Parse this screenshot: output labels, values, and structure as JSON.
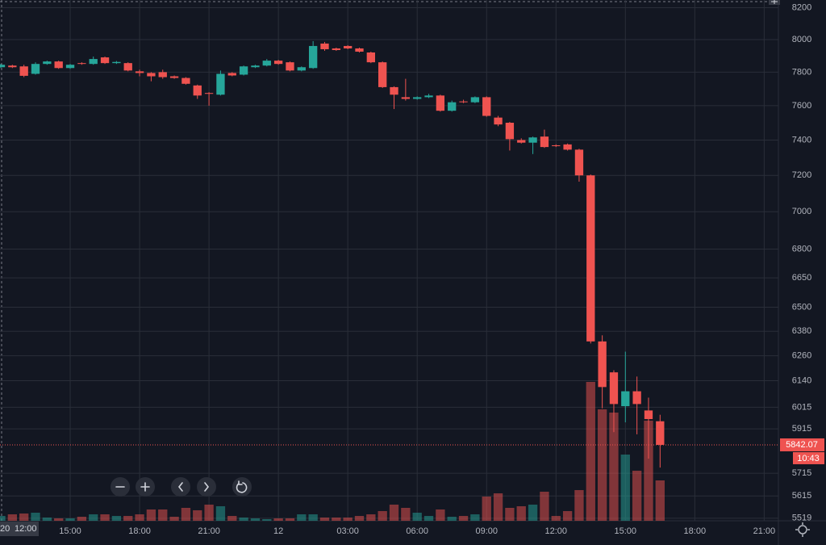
{
  "chart_data": {
    "type": "candlestick",
    "categories": [
      "12:00",
      "12:30",
      "13:00",
      "13:30",
      "14:00",
      "14:30",
      "15:00",
      "15:30",
      "16:00",
      "16:30",
      "17:00",
      "17:30",
      "18:00",
      "18:30",
      "19:00",
      "19:30",
      "20:00",
      "20:30",
      "21:00",
      "21:30",
      "22:00",
      "22:30",
      "23:00",
      "23:30",
      "00:00",
      "00:30",
      "01:00",
      "01:30",
      "02:00",
      "02:30",
      "03:00",
      "03:30",
      "04:00",
      "04:30",
      "05:00",
      "05:30",
      "06:00",
      "06:30",
      "07:00",
      "07:30",
      "08:00",
      "08:30",
      "09:00",
      "09:30",
      "10:00",
      "10:30",
      "11:00",
      "11:30",
      "12:00",
      "12:30",
      "13:00",
      "13:30",
      "14:00",
      "14:30",
      "15:00",
      "15:30",
      "16:00",
      "16:30"
    ],
    "open": [
      7830,
      7840,
      7835,
      7790,
      7850,
      7865,
      7825,
      7855,
      7850,
      7890,
      7855,
      7855,
      7805,
      7795,
      7800,
      7775,
      7765,
      7720,
      7675,
      7665,
      7795,
      7785,
      7830,
      7840,
      7870,
      7860,
      7810,
      7825,
      7975,
      7945,
      7960,
      7945,
      7920,
      7860,
      7710,
      7650,
      7640,
      7650,
      7660,
      7570,
      7625,
      7620,
      7650,
      7530,
      7500,
      7400,
      7385,
      7420,
      7370,
      7375,
      7345,
      7200,
      6330,
      6180,
      6020,
      6090,
      6000,
      5950
    ],
    "high": [
      7850,
      7845,
      7845,
      7860,
      7870,
      7870,
      7850,
      7860,
      7895,
      7895,
      7868,
      7860,
      7815,
      7800,
      7815,
      7780,
      7770,
      7725,
      7680,
      7810,
      7800,
      7840,
      7845,
      7880,
      7875,
      7865,
      7835,
      7990,
      7985,
      7950,
      7965,
      7950,
      7925,
      7865,
      7715,
      7760,
      7655,
      7670,
      7665,
      7630,
      7635,
      7655,
      7655,
      7540,
      7505,
      7410,
      7420,
      7460,
      7375,
      7380,
      7350,
      7205,
      6360,
      6190,
      6280,
      6160,
      6060,
      5980
    ],
    "low": [
      7825,
      7825,
      7770,
      7785,
      7845,
      7820,
      7820,
      7845,
      7845,
      7850,
      7850,
      7805,
      7775,
      7745,
      7760,
      7760,
      7725,
      7640,
      7600,
      7660,
      7775,
      7780,
      7825,
      7835,
      7845,
      7805,
      7805,
      7820,
      7930,
      7930,
      7940,
      7920,
      7855,
      7705,
      7580,
      7630,
      7635,
      7645,
      7565,
      7565,
      7615,
      7615,
      7535,
      7480,
      7340,
      7380,
      7320,
      7355,
      7360,
      7340,
      7165,
      6320,
      6010,
      5900,
      5945,
      5890,
      5780,
      5740
    ],
    "close": [
      7845,
      7830,
      7778,
      7850,
      7865,
      7825,
      7845,
      7850,
      7880,
      7855,
      7862,
      7810,
      7795,
      7775,
      7770,
      7765,
      7730,
      7660,
      7670,
      7790,
      7780,
      7835,
      7840,
      7870,
      7850,
      7810,
      7830,
      7960,
      7940,
      7935,
      7945,
      7925,
      7860,
      7710,
      7665,
      7640,
      7650,
      7660,
      7570,
      7620,
      7620,
      7650,
      7540,
      7490,
      7405,
      7385,
      7415,
      7360,
      7365,
      7345,
      7200,
      6330,
      6110,
      6030,
      6090,
      6030,
      5960,
      5842
    ],
    "volume": [
      6,
      8,
      9,
      10,
      4,
      3,
      3,
      5,
      8,
      8,
      6,
      6,
      8,
      14,
      14,
      5,
      16,
      13,
      20,
      18,
      6,
      4,
      3,
      2,
      3,
      3,
      8,
      8,
      4,
      4,
      4,
      6,
      8,
      12,
      20,
      16,
      10,
      6,
      14,
      5,
      6,
      8,
      30,
      34,
      16,
      18,
      20,
      36,
      6,
      12,
      38,
      172,
      138,
      134,
      82,
      62,
      124,
      50
    ],
    "up_color": "#26a69a",
    "down_color": "#ef5350",
    "log_scale": true,
    "grid": true,
    "ylim": [
      5508,
      8249
    ],
    "yticks": [
      8200,
      8000,
      7800,
      7600,
      7400,
      7200,
      7000,
      6800,
      6650,
      6500,
      6380,
      6260,
      6140,
      6015,
      5915,
      5715,
      5615,
      5519
    ],
    "vlim": [
      0,
      645
    ],
    "xlim": [
      0,
      67.3
    ],
    "xticks": [
      {
        "value": 6,
        "label": "15:00"
      },
      {
        "value": 12,
        "label": "18:00"
      },
      {
        "value": 18,
        "label": "21:00"
      },
      {
        "value": 24,
        "label": "12"
      },
      {
        "value": 30,
        "label": "03:00"
      },
      {
        "value": 36,
        "label": "06:00"
      },
      {
        "value": 42,
        "label": "09:00"
      },
      {
        "value": 48,
        "label": "12:00"
      },
      {
        "value": 54,
        "label": "15:00"
      },
      {
        "value": 60,
        "label": "18:00"
      },
      {
        "value": 66,
        "label": "21:00"
      }
    ],
    "last_price": 5842.07,
    "countdown": "10:43",
    "cursor_date_label": "20",
    "cursor_time_label": "12:00"
  }
}
